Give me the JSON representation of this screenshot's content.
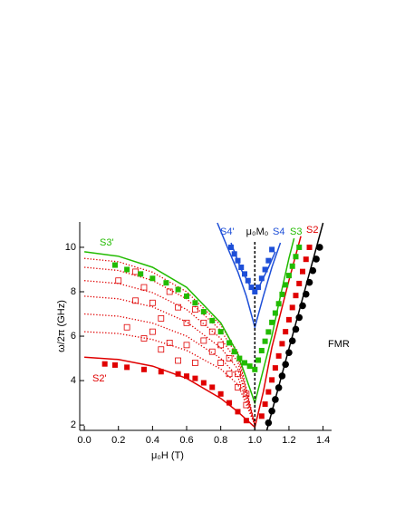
{
  "chart_data": {
    "type": "scatter",
    "xlabel": "μ₀H (T)",
    "ylabel": "ω/2π (GHz)",
    "xlim": [
      -0.027,
      1.45
    ],
    "ylim": [
      1.76,
      11.14
    ],
    "xticks": [
      {
        "value": 0,
        "label": "0.0"
      },
      0.2,
      0.4,
      0.6,
      0.8,
      {
        "value": 1,
        "label": "1.0"
      },
      1.2,
      1.4
    ],
    "yticks": [
      2,
      4,
      6,
      8,
      10
    ],
    "annotations": [
      "S3'",
      "S2'",
      "S4'",
      "μ₀M₀",
      "S4",
      "S3",
      "S2",
      "FMR"
    ],
    "series": [
      {
        "style": "line",
        "dash": "dotted",
        "color": "#e00000",
        "x": [
          0,
          0.2,
          0.4,
          0.6,
          0.8,
          0.9,
          1.0
        ],
        "y": [
          9.5,
          9.35,
          8.88,
          8.0,
          6.5,
          5.27,
          2.0
        ]
      },
      {
        "style": "line",
        "dash": "dotted",
        "color": "#e00000",
        "x": [
          0,
          0.2,
          0.4,
          0.6,
          0.8,
          0.9,
          1.0
        ],
        "y": [
          9.1,
          8.96,
          8.51,
          7.68,
          6.26,
          5.1,
          2.0
        ]
      },
      {
        "style": "line",
        "dash": "dotted",
        "color": "#e00000",
        "x": [
          0,
          0.2,
          0.4,
          0.6,
          0.8,
          0.9,
          1.0
        ],
        "y": [
          8.5,
          8.37,
          7.96,
          7.2,
          5.9,
          4.83,
          2.0
        ]
      },
      {
        "style": "line",
        "dash": "dotted",
        "color": "#e00000",
        "x": [
          0,
          0.2,
          0.4,
          0.6,
          0.8,
          0.9,
          1.0
        ],
        "y": [
          7.8,
          7.68,
          7.32,
          6.64,
          5.48,
          4.53,
          2.0
        ]
      },
      {
        "style": "line",
        "dash": "dotted",
        "color": "#e00000",
        "x": [
          0,
          0.2,
          0.4,
          0.6,
          0.8,
          0.9,
          1.0
        ],
        "y": [
          7.0,
          6.9,
          6.59,
          6.0,
          5.0,
          4.18,
          2.0
        ]
      },
      {
        "style": "line",
        "dash": "dotted",
        "color": "#e00000",
        "x": [
          0,
          0.2,
          0.4,
          0.6,
          0.8,
          0.9,
          1.0
        ],
        "y": [
          6.2,
          6.12,
          5.85,
          5.36,
          4.52,
          3.83,
          2.0
        ]
      },
      {
        "style": "line",
        "color": "#22bb00",
        "x": [
          0,
          0.2,
          0.4,
          0.6,
          0.8,
          0.9,
          1.0,
          1.05,
          1.1,
          1.15,
          1.2,
          1.23
        ],
        "y": [
          9.8,
          9.6,
          9.1,
          8.2,
          6.6,
          5.2,
          3.0,
          4.5,
          6.0,
          7.8,
          9.5,
          10.4
        ]
      },
      {
        "style": "line",
        "color": "#e00000",
        "x": [
          0,
          0.2,
          0.4,
          0.6,
          0.8,
          0.9,
          1.0,
          1.05,
          1.1,
          1.2,
          1.27
        ],
        "y": [
          5.05,
          4.95,
          4.65,
          4.1,
          3.2,
          2.6,
          1.9,
          3.5,
          5.5,
          8.5,
          10.5
        ]
      },
      {
        "style": "line",
        "color": "#1e4fd8",
        "x": [
          0.78,
          0.85,
          0.9,
          0.95,
          1.0,
          1.05,
          1.1,
          1.15
        ],
        "y": [
          11.1,
          9.8,
          8.9,
          7.8,
          6.4,
          7.8,
          9.1,
          10.2
        ]
      },
      {
        "style": "line",
        "color": "#1e4fd8",
        "x": [
          0.86,
          0.92,
          0.97,
          1.0,
          1.03,
          1.08,
          1.12
        ],
        "y": [
          10.2,
          9.0,
          8.3,
          8.0,
          8.3,
          9.1,
          9.8
        ]
      },
      {
        "style": "line",
        "color": "#000000",
        "x": [
          1.07,
          1.4
        ],
        "y": [
          1.76,
          11.1
        ]
      },
      {
        "style": "line",
        "dash": "dashed",
        "color": "#000000",
        "x": [
          1.0,
          1.0
        ],
        "y": [
          1.76,
          10.3
        ]
      },
      {
        "style": "marker",
        "marker": "open-square",
        "color": "#e00000",
        "x": [
          0.3,
          0.35,
          0.4,
          0.45,
          0.5,
          0.55,
          0.6,
          0.6,
          0.65,
          0.7,
          0.7,
          0.75,
          0.75,
          0.8,
          0.8,
          0.85,
          0.85,
          0.9,
          0.9,
          0.95,
          0.95,
          0.25,
          0.35,
          0.45,
          0.55,
          0.65,
          0.2,
          0.3,
          0.4,
          0.5
        ],
        "y": [
          8.9,
          8.2,
          7.5,
          6.8,
          8.0,
          7.3,
          6.6,
          5.6,
          7.2,
          6.6,
          5.8,
          6.2,
          5.3,
          5.6,
          4.8,
          5.0,
          4.3,
          4.3,
          3.7,
          3.4,
          2.9,
          6.4,
          5.9,
          5.4,
          4.9,
          4.8,
          8.5,
          7.6,
          6.2,
          5.7
        ]
      },
      {
        "style": "marker",
        "marker": "square",
        "color": "#e00000",
        "x": [
          0.12,
          0.18,
          0.25,
          0.35,
          0.45,
          0.55,
          0.6,
          0.65,
          0.7,
          0.75,
          0.8,
          0.85,
          0.9,
          0.95
        ],
        "y": [
          4.75,
          4.7,
          4.6,
          4.5,
          4.4,
          4.3,
          4.2,
          4.1,
          3.9,
          3.7,
          3.4,
          3.0,
          2.6,
          2.2
        ]
      },
      {
        "style": "marker",
        "marker": "square",
        "color": "#e00000",
        "x": [
          1.04,
          1.06,
          1.08,
          1.1,
          1.12,
          1.14,
          1.16,
          1.18,
          1.2,
          1.22,
          1.24,
          1.26,
          1.28,
          1.3,
          1.32
        ],
        "y": [
          2.4,
          2.94,
          3.49,
          4.03,
          4.57,
          5.11,
          5.66,
          6.2,
          6.74,
          7.29,
          7.83,
          8.37,
          8.91,
          9.46,
          10.0
        ]
      },
      {
        "style": "marker",
        "marker": "square",
        "color": "#22bb00",
        "x": [
          0.18,
          0.25,
          0.33,
          0.4,
          0.48,
          0.55,
          0.6,
          0.65,
          0.7,
          0.75,
          0.8,
          0.85,
          0.88,
          0.91,
          0.94,
          0.97
        ],
        "y": [
          9.2,
          9.0,
          8.8,
          8.6,
          8.4,
          8.1,
          7.8,
          7.5,
          7.1,
          6.7,
          6.2,
          5.7,
          5.3,
          5.0,
          4.8,
          4.65
        ]
      },
      {
        "style": "marker",
        "marker": "square",
        "color": "#22bb00",
        "x": [
          1.0,
          1.02,
          1.04,
          1.06,
          1.08,
          1.1,
          1.12,
          1.14,
          1.16,
          1.18,
          1.2,
          1.22,
          1.24,
          1.26
        ],
        "y": [
          4.5,
          4.92,
          5.35,
          5.77,
          6.19,
          6.62,
          7.04,
          7.46,
          7.88,
          8.31,
          8.73,
          9.15,
          9.58,
          10.0
        ]
      },
      {
        "style": "marker",
        "marker": "square",
        "color": "#1e4fd8",
        "x": [
          0.86,
          0.88,
          0.9,
          0.92,
          0.94,
          0.96,
          0.98,
          1.0,
          1.02,
          1.04,
          1.06,
          1.08,
          1.1
        ],
        "y": [
          10.0,
          9.7,
          9.4,
          9.1,
          8.8,
          8.5,
          8.2,
          8.0,
          8.2,
          8.6,
          9.0,
          9.4,
          9.9
        ]
      },
      {
        "style": "marker",
        "marker": "circle",
        "color": "#000000",
        "x": [
          1.08,
          1.1,
          1.12,
          1.14,
          1.16,
          1.18,
          1.2,
          1.22,
          1.24,
          1.26,
          1.28,
          1.3,
          1.32,
          1.34,
          1.36,
          1.38
        ],
        "y": [
          2.1,
          2.63,
          3.15,
          3.68,
          4.21,
          4.73,
          5.26,
          5.79,
          6.31,
          6.84,
          7.37,
          7.89,
          8.42,
          8.95,
          9.47,
          10.0
        ]
      }
    ]
  }
}
